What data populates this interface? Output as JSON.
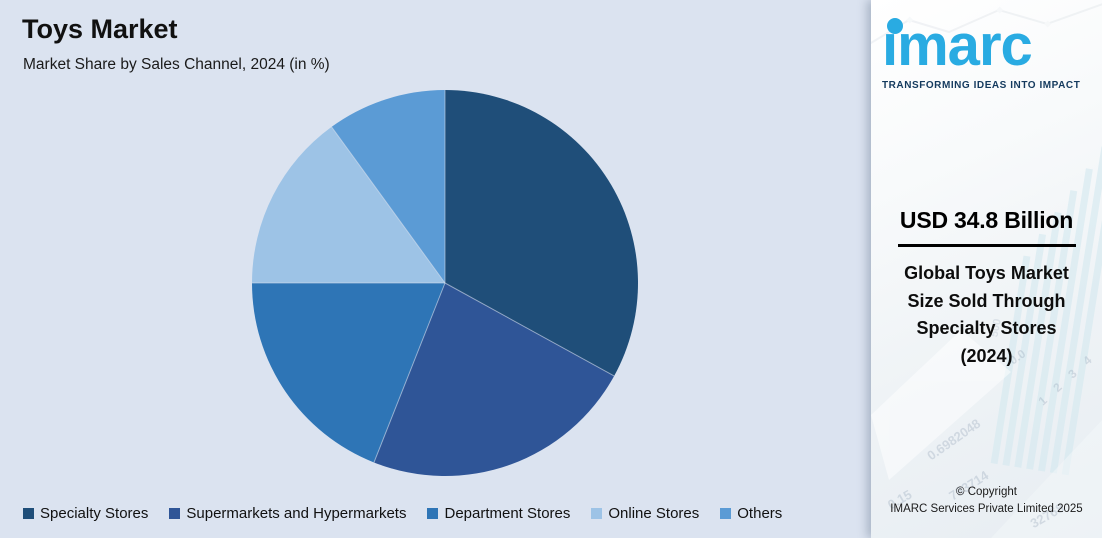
{
  "header": {
    "title": "Toys Market",
    "subtitle": "Market Share by Sales Channel, 2024 (in %)"
  },
  "chart_data": {
    "type": "pie",
    "title": "Toys Market",
    "subtitle": "Market Share by Sales Channel, 2024 (in %)",
    "units": "percent",
    "start_angle": "12-o-clock",
    "direction": "clockwise",
    "legend_position": "bottom",
    "data_labels_shown": false,
    "slices": [
      {
        "label": "Specialty Stores",
        "value": 33,
        "color": "#1F4E79"
      },
      {
        "label": "Supermarkets and Hypermarkets",
        "value": 23,
        "color": "#2F5597"
      },
      {
        "label": "Department Stores",
        "value": 19,
        "color": "#2E75B6"
      },
      {
        "label": "Online Stores",
        "value": 15,
        "color": "#9DC3E6"
      },
      {
        "label": "Others",
        "value": 10,
        "color": "#5B9BD5"
      }
    ]
  },
  "side_panel": {
    "logo_text": "imarc",
    "logo_tagline": "TRANSFORMING IDEAS INTO IMPACT",
    "stat_value": "USD 34.8 Billion",
    "stat_description_lines": [
      "Global Toys Market",
      "Size Sold Through",
      "Specialty Stores",
      "(2024)"
    ],
    "copyright_line1": "© Copyright",
    "copyright_line2": "IMARC Services Private Limited 2025",
    "watermarks": [
      "0.6982048",
      "0.15",
      "783714",
      "32768",
      "0.0",
      "1 2 3 4",
      "500"
    ]
  },
  "colors": {
    "chart_background": "#DBE3F0",
    "logo_blue": "#29ABE2",
    "tagline_navy": "#143A5E",
    "separator_line": "#D9E1EE"
  }
}
